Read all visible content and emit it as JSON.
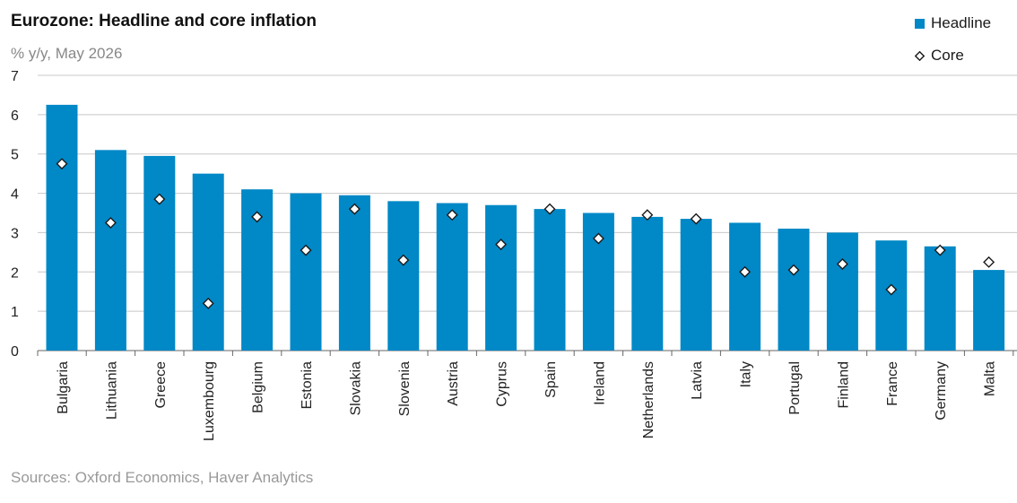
{
  "colors": {
    "headline": "#0088c7",
    "core_marker_fill": "#ffffff",
    "core_marker_stroke": "#1a1a1a",
    "grid": "#c8c8c8"
  },
  "chart_data": {
    "type": "bar",
    "title": "Eurozone: Headline and core inflation",
    "subtitle": "% y/y, May 2026",
    "source": "Sources: Oxford Economics, Haver Analytics",
    "xlabel": "",
    "ylabel": "",
    "ylim": [
      0,
      7
    ],
    "yticks": [
      0,
      1,
      2,
      3,
      4,
      5,
      6,
      7
    ],
    "grid": true,
    "legend_position": "top-right",
    "categories": [
      "Bulgaria",
      "Lithuania",
      "Greece",
      "Luxembourg",
      "Belgium",
      "Estonia",
      "Slovakia",
      "Slovenia",
      "Austria",
      "Cyprus",
      "Spain",
      "Ireland",
      "Netherlands",
      "Latvia",
      "Italy",
      "Portugal",
      "Finland",
      "France",
      "Germany",
      "Malta"
    ],
    "series": [
      {
        "name": "Headline",
        "kind": "bar",
        "values": [
          6.25,
          5.1,
          4.95,
          4.5,
          4.1,
          4.0,
          3.95,
          3.8,
          3.75,
          3.7,
          3.6,
          3.5,
          3.4,
          3.35,
          3.25,
          3.1,
          3.0,
          2.8,
          2.65,
          2.05
        ]
      },
      {
        "name": "Core",
        "kind": "marker",
        "values": [
          4.75,
          3.25,
          3.85,
          1.2,
          3.4,
          2.55,
          3.6,
          2.3,
          3.45,
          2.7,
          3.6,
          2.85,
          3.45,
          3.35,
          2.0,
          2.05,
          2.2,
          1.55,
          2.55,
          2.25
        ]
      }
    ]
  }
}
